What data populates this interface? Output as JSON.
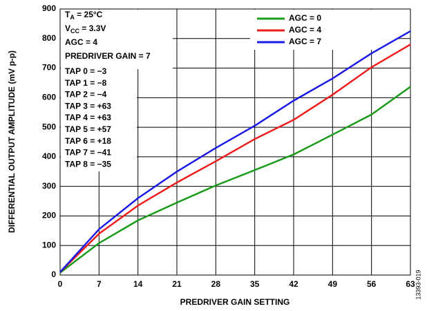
{
  "chart_data": {
    "type": "line",
    "xlabel": "PREDRIVER GAIN SETTING",
    "ylabel": "DIFFERENTIAL OUTPUT AMPLITUDE (mV p-p)",
    "side_note": "13393-019",
    "x": [
      0,
      7,
      14,
      21,
      28,
      35,
      42,
      49,
      56,
      63
    ],
    "xlim": [
      0,
      63
    ],
    "xticks": [
      0,
      7,
      14,
      21,
      28,
      35,
      42,
      49,
      56,
      63
    ],
    "ylim": [
      0,
      900
    ],
    "yticks": [
      0,
      100,
      200,
      300,
      400,
      500,
      600,
      700,
      800,
      900
    ],
    "grid": true,
    "legend": "upper right",
    "series": [
      {
        "name": "AGC = 0",
        "color": "#1a9a1a",
        "values": [
          8,
          108,
          185,
          245,
          303,
          355,
          408,
          475,
          543,
          637
        ]
      },
      {
        "name": "AGC = 4",
        "color": "#ee1c1c",
        "values": [
          10,
          140,
          235,
          313,
          385,
          460,
          525,
          610,
          703,
          780
        ]
      },
      {
        "name": "AGC = 7",
        "color": "#1a1ae6",
        "values": [
          10,
          155,
          260,
          350,
          430,
          505,
          590,
          665,
          750,
          825
        ]
      }
    ],
    "annotations": [
      {
        "main": "T",
        "sub": "A",
        "rest": " = 25°C"
      },
      {
        "main": "V",
        "sub": "CC",
        "rest": " = 3.3V"
      },
      {
        "main": "AGC = 4"
      },
      {
        "main": "PREDRIVER GAIN = 7"
      },
      {
        "main": "TAP 0 = −3"
      },
      {
        "main": "TAP 1 = −8"
      },
      {
        "main": "TAP 2 = −4"
      },
      {
        "main": "TAP 3 = +63"
      },
      {
        "main": "TAP 4 = +63"
      },
      {
        "main": "TAP 5 = +57"
      },
      {
        "main": "TAP 6 = +18"
      },
      {
        "main": "TAP 7 = −41"
      },
      {
        "main": "TAP 8 = −35"
      }
    ]
  }
}
